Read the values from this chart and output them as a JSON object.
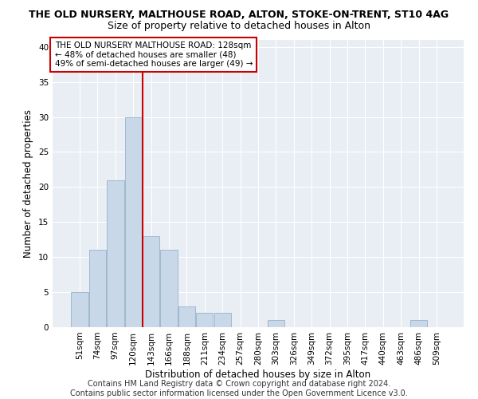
{
  "title_line1": "THE OLD NURSERY, MALTHOUSE ROAD, ALTON, STOKE-ON-TRENT, ST10 4AG",
  "title_line2": "Size of property relative to detached houses in Alton",
  "xlabel": "Distribution of detached houses by size in Alton",
  "ylabel": "Number of detached properties",
  "categories": [
    "51sqm",
    "74sqm",
    "97sqm",
    "120sqm",
    "143sqm",
    "166sqm",
    "188sqm",
    "211sqm",
    "234sqm",
    "257sqm",
    "280sqm",
    "303sqm",
    "326sqm",
    "349sqm",
    "372sqm",
    "395sqm",
    "417sqm",
    "440sqm",
    "463sqm",
    "486sqm",
    "509sqm"
  ],
  "values": [
    5,
    11,
    21,
    30,
    13,
    11,
    3,
    2,
    2,
    0,
    0,
    1,
    0,
    0,
    0,
    0,
    0,
    0,
    0,
    1,
    0
  ],
  "bar_color": "#c8d8e8",
  "bar_edgecolor": "#a0b8cc",
  "redline_x": 3.52,
  "redline_color": "#cc0000",
  "annotation_text": "THE OLD NURSERY MALTHOUSE ROAD: 128sqm\n← 48% of detached houses are smaller (48)\n49% of semi-detached houses are larger (49) →",
  "annotation_box_color": "#ffffff",
  "annotation_box_edgecolor": "#cc0000",
  "ylim": [
    0,
    41
  ],
  "yticks": [
    0,
    5,
    10,
    15,
    20,
    25,
    30,
    35,
    40
  ],
  "background_color": "#e8eef4",
  "footer_line1": "Contains HM Land Registry data © Crown copyright and database right 2024.",
  "footer_line2": "Contains public sector information licensed under the Open Government Licence v3.0.",
  "title_fontsize": 9,
  "subtitle_fontsize": 9,
  "axis_label_fontsize": 8.5,
  "tick_fontsize": 7.5,
  "annotation_fontsize": 7.5,
  "footer_fontsize": 7
}
